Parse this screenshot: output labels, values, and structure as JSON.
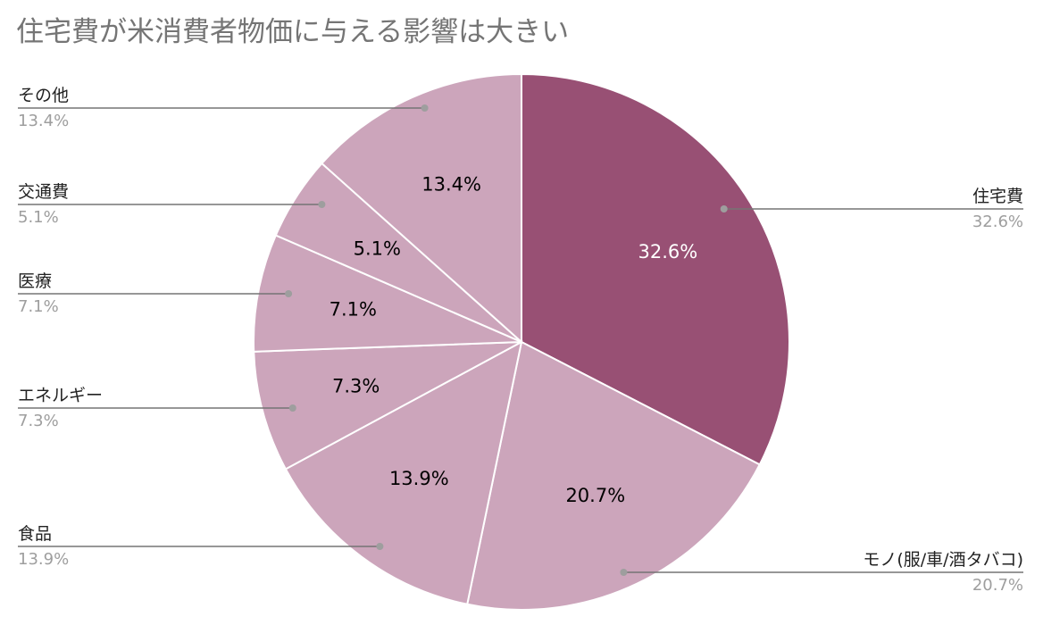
{
  "chart_data": {
    "type": "pie",
    "title": "住宅費が米消費者物価に与える影響は大きい",
    "categories": [
      "住宅費",
      "モノ(服/車/酒タバコ)",
      "食品",
      "エネルギー",
      "医療",
      "交通費",
      "その他"
    ],
    "values": [
      32.6,
      20.7,
      13.9,
      7.3,
      7.1,
      5.1,
      13.4
    ],
    "value_labels": [
      "32.6%",
      "20.7%",
      "13.9%",
      "7.3%",
      "7.1%",
      "5.1%",
      "13.4%"
    ],
    "start_angle_deg": 0,
    "direction": "clockwise",
    "legend": "callouts",
    "colors": {
      "highlight": "#985074",
      "others": "#cca5bb",
      "slice_border": "#ffffff",
      "leader_line": "#757575",
      "leader_dot": "#9e9e9e",
      "label_on_highlight": "#ffffff",
      "label_on_others": "#000000"
    }
  }
}
